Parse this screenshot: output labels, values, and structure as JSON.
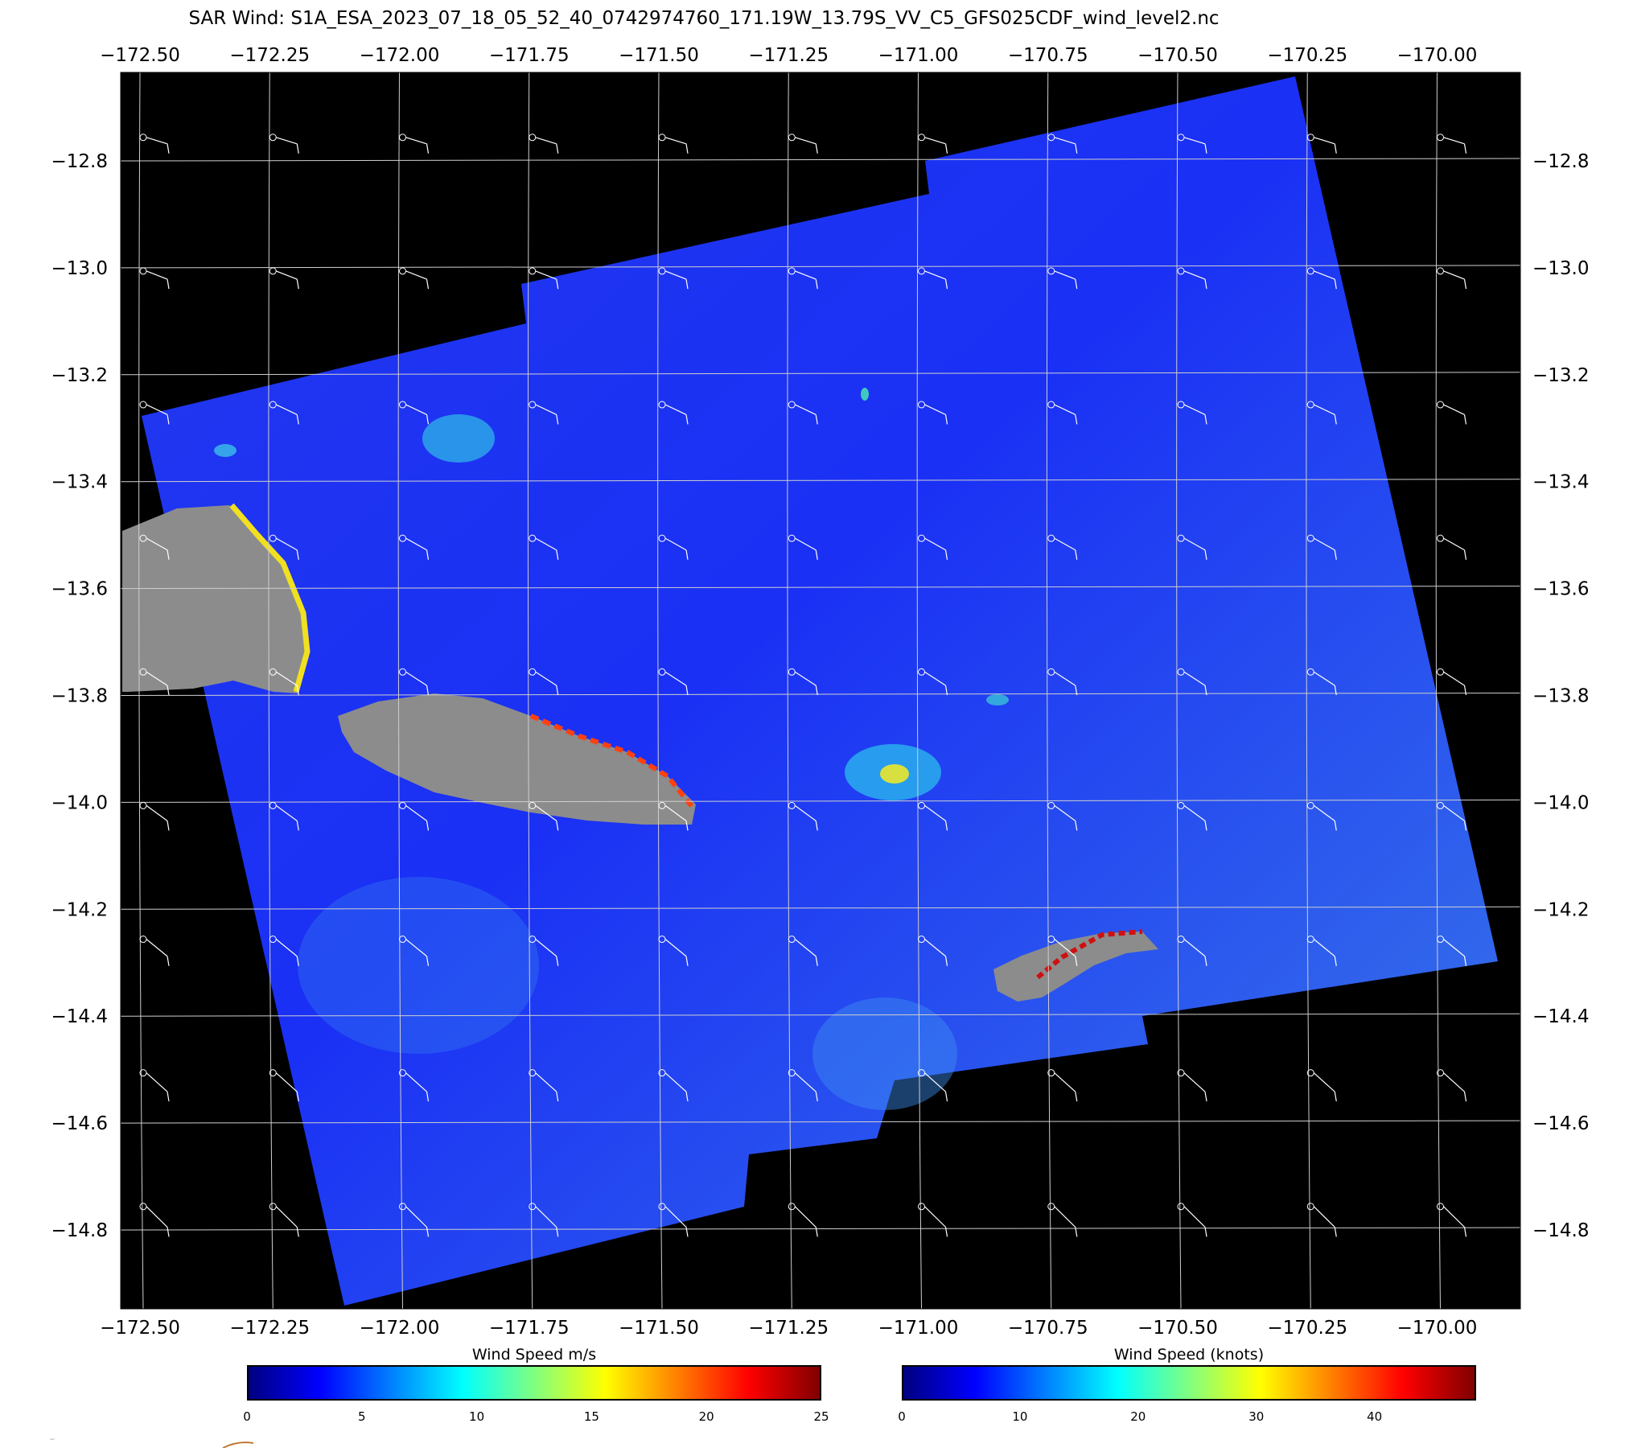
{
  "title": "SAR Wind: S1A_ESA_2023_07_18_05_52_40_0742974760_171.19W_13.79S_VV_C5_GFS025CDF_wind_level2.nc",
  "map": {
    "lon_labels": [
      "−172.50",
      "−172.25",
      "−172.00",
      "−171.75",
      "−171.50",
      "−171.25",
      "−171.00",
      "−170.75",
      "−170.50",
      "−170.25",
      "−170.00"
    ],
    "lat_labels": [
      "−12.8",
      "−13.0",
      "−13.2",
      "−13.4",
      "−13.6",
      "−13.8",
      "−14.0",
      "−14.2",
      "−14.4",
      "−14.6",
      "−14.8"
    ],
    "lon_values": [
      -172.5,
      -172.25,
      -172.0,
      -171.75,
      -171.5,
      -171.25,
      -171.0,
      -170.75,
      -170.5,
      -170.25,
      -170.0
    ],
    "lat_values": [
      -12.8,
      -13.0,
      -13.2,
      -13.4,
      -13.6,
      -13.8,
      -14.0,
      -14.2,
      -14.4,
      -14.6,
      -14.8
    ],
    "background_color": "#000000",
    "land_color": "#8c8c8c",
    "ocean_color": "#1a3cf0",
    "grid_color": "#cfcfcf"
  },
  "colorbars": [
    {
      "title": "Wind Speed m/s",
      "tick_labels": [
        "0",
        "5",
        "10",
        "15",
        "20",
        "25"
      ],
      "min": 0,
      "max": 25
    },
    {
      "title": "Wind Speed (knots)",
      "tick_labels": [
        "0",
        "10",
        "20",
        "30",
        "40"
      ],
      "min": 0,
      "max": 48.6
    }
  ],
  "colormap": [
    "#000080",
    "#0000ff",
    "#0080ff",
    "#00ffff",
    "#80ff80",
    "#ffff00",
    "#ff8000",
    "#ff0000",
    "#800000"
  ]
}
